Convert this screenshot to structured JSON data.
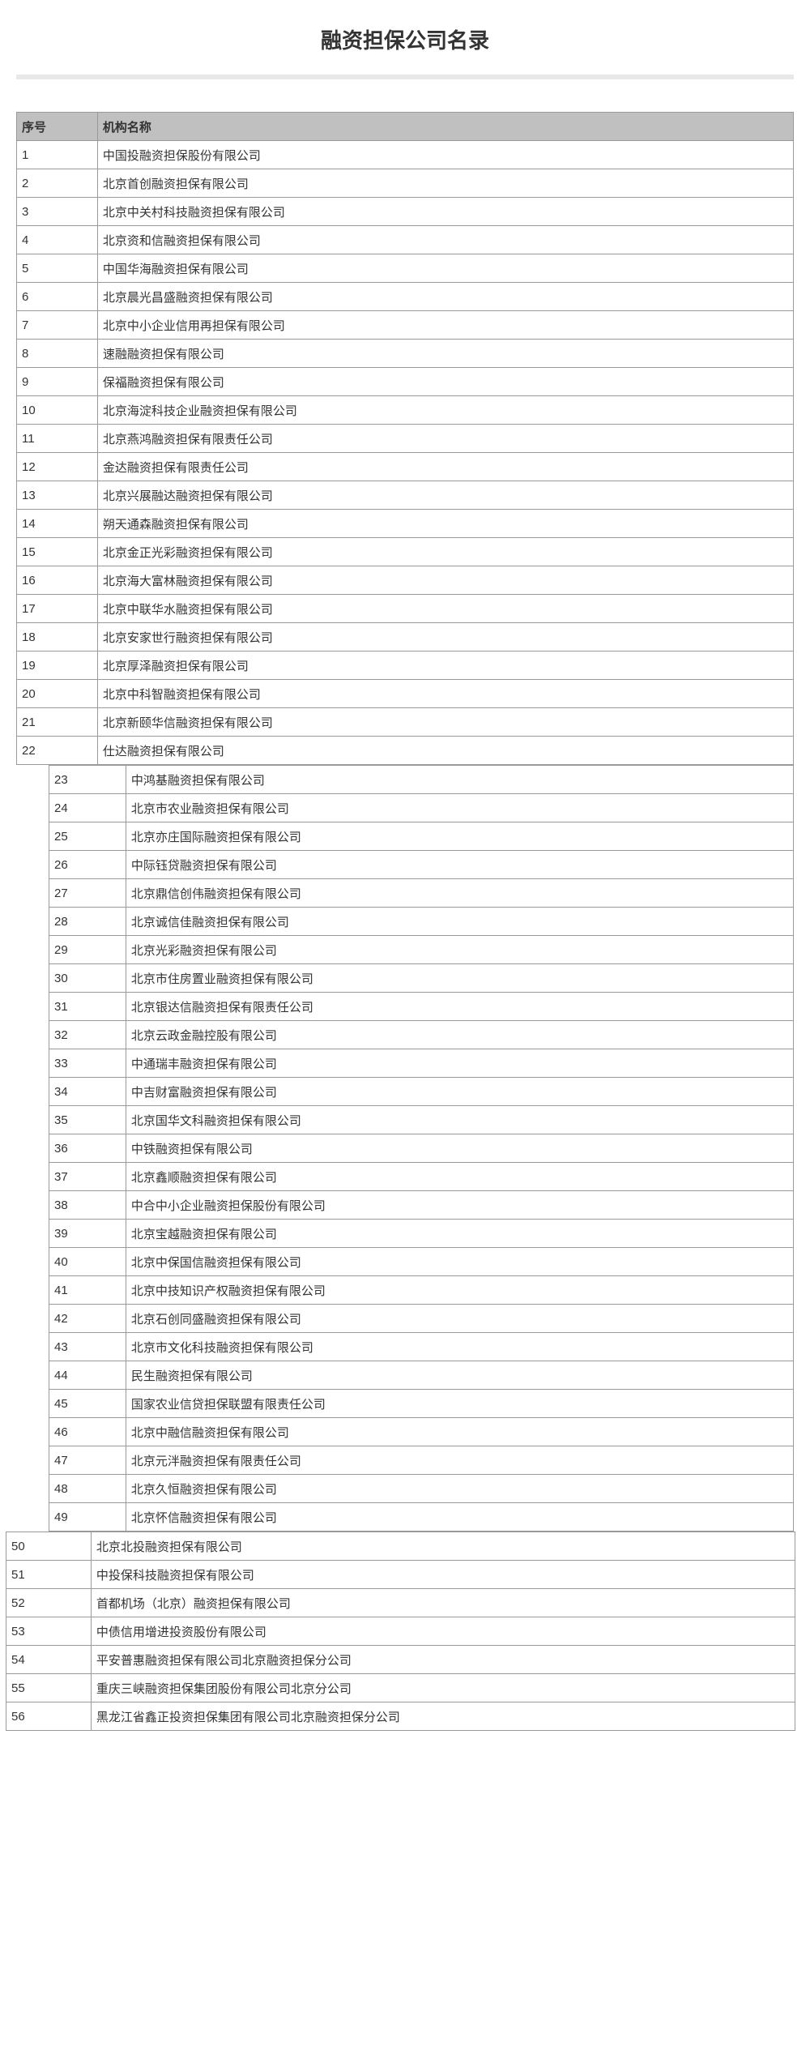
{
  "title": "融资担保公司名录",
  "colors": {
    "background": "#ffffff",
    "title_text": "#333333",
    "divider": "#e8e8e8",
    "header_bg": "#c0c0c0",
    "cell_text": "#333333",
    "border": "#999999"
  },
  "typography": {
    "title_fontsize": 26,
    "cell_fontsize": 15,
    "font_family": "Microsoft YaHei"
  },
  "columns": {
    "num": "序号",
    "name": "机构名称"
  },
  "section1": {
    "rows": [
      {
        "num": "1",
        "name": "中国投融资担保股份有限公司"
      },
      {
        "num": "2",
        "name": "北京首创融资担保有限公司"
      },
      {
        "num": "3",
        "name": "北京中关村科技融资担保有限公司"
      },
      {
        "num": "4",
        "name": "北京资和信融资担保有限公司"
      },
      {
        "num": "5",
        "name": "中国华海融资担保有限公司"
      },
      {
        "num": "6",
        "name": "北京晨光昌盛融资担保有限公司"
      },
      {
        "num": "7",
        "name": "北京中小企业信用再担保有限公司"
      },
      {
        "num": "8",
        "name": "速融融资担保有限公司"
      },
      {
        "num": "9",
        "name": "保福融资担保有限公司"
      },
      {
        "num": "10",
        "name": "北京海淀科技企业融资担保有限公司"
      },
      {
        "num": "11",
        "name": "北京燕鸿融资担保有限责任公司"
      },
      {
        "num": "12",
        "name": "金达融资担保有限责任公司"
      },
      {
        "num": "13",
        "name": "北京兴展融达融资担保有限公司"
      },
      {
        "num": "14",
        "name": "朔天通森融资担保有限公司"
      },
      {
        "num": "15",
        "name": "北京金正光彩融资担保有限公司"
      },
      {
        "num": "16",
        "name": "北京海大富林融资担保有限公司"
      },
      {
        "num": "17",
        "name": "北京中联华水融资担保有限公司"
      },
      {
        "num": "18",
        "name": "北京安家世行融资担保有限公司"
      },
      {
        "num": "19",
        "name": "北京厚泽融资担保有限公司"
      },
      {
        "num": "20",
        "name": "北京中科智融资担保有限公司"
      },
      {
        "num": "21",
        "name": "北京新颐华信融资担保有限公司"
      },
      {
        "num": "22",
        "name": "仕达融资担保有限公司"
      }
    ]
  },
  "section2": {
    "rows": [
      {
        "num": "23",
        "name": "中鸿基融资担保有限公司"
      },
      {
        "num": "24",
        "name": "北京市农业融资担保有限公司"
      },
      {
        "num": "25",
        "name": "北京亦庄国际融资担保有限公司"
      },
      {
        "num": "26",
        "name": "中际钰贷融资担保有限公司"
      },
      {
        "num": "27",
        "name": "北京鼎信创伟融资担保有限公司"
      },
      {
        "num": "28",
        "name": "北京诚信佳融资担保有限公司"
      },
      {
        "num": "29",
        "name": "北京光彩融资担保有限公司"
      },
      {
        "num": "30",
        "name": "北京市住房置业融资担保有限公司"
      },
      {
        "num": "31",
        "name": "北京银达信融资担保有限责任公司"
      },
      {
        "num": "32",
        "name": "北京云政金融控股有限公司"
      },
      {
        "num": "33",
        "name": "中通瑞丰融资担保有限公司"
      },
      {
        "num": "34",
        "name": "中吉财富融资担保有限公司"
      },
      {
        "num": "35",
        "name": "北京国华文科融资担保有限公司"
      },
      {
        "num": "36",
        "name": "中铁融资担保有限公司"
      },
      {
        "num": "37",
        "name": "北京鑫顺融资担保有限公司"
      },
      {
        "num": "38",
        "name": "中合中小企业融资担保股份有限公司"
      },
      {
        "num": "39",
        "name": "北京宝越融资担保有限公司"
      },
      {
        "num": "40",
        "name": "北京中保国信融资担保有限公司"
      },
      {
        "num": "41",
        "name": "北京中技知识产权融资担保有限公司"
      },
      {
        "num": "42",
        "name": "北京石创同盛融资担保有限公司"
      },
      {
        "num": "43",
        "name": "北京市文化科技融资担保有限公司"
      },
      {
        "num": "44",
        "name": "民生融资担保有限公司"
      },
      {
        "num": "45",
        "name": "国家农业信贷担保联盟有限责任公司"
      },
      {
        "num": "46",
        "name": "北京中融信融资担保有限公司"
      },
      {
        "num": "47",
        "name": "北京元泮融资担保有限责任公司"
      },
      {
        "num": "48",
        "name": "北京久恒融资担保有限公司"
      },
      {
        "num": "49",
        "name": "北京怀信融资担保有限公司"
      }
    ]
  },
  "section3": {
    "rows": [
      {
        "num": "50",
        "name": "北京北投融资担保有限公司"
      },
      {
        "num": "51",
        "name": "中投保科技融资担保有限公司"
      },
      {
        "num": "52",
        "name": "首都机场（北京）融资担保有限公司"
      },
      {
        "num": "53",
        "name": "中债信用增进投资股份有限公司"
      },
      {
        "num": "54",
        "name": "平安普惠融资担保有限公司北京融资担保分公司"
      },
      {
        "num": "55",
        "name": "重庆三峡融资担保集团股份有限公司北京分公司"
      },
      {
        "num": "56",
        "name": "黑龙江省鑫正投资担保集团有限公司北京融资担保分公司"
      }
    ]
  }
}
